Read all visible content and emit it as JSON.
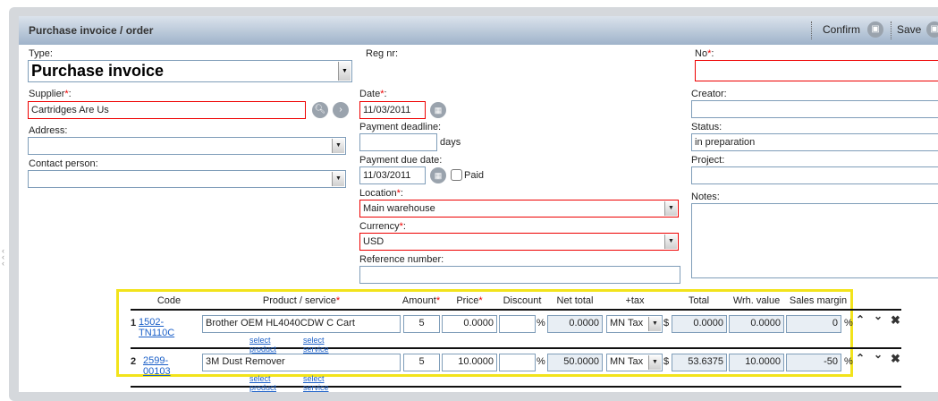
{
  "window": {
    "title": "Purchase invoice / order"
  },
  "toolbar": {
    "confirm_label": "Confirm",
    "save_label": "Save"
  },
  "form": {
    "type": {
      "label": "Type:",
      "value": "Purchase invoice"
    },
    "supplier": {
      "label": "Supplier",
      "value": "Cartridges Are Us"
    },
    "address": {
      "label": "Address:",
      "value": ""
    },
    "contact": {
      "label": "Contact person:",
      "value": ""
    },
    "reg_nr": {
      "label": "Reg nr:"
    },
    "date": {
      "label": "Date",
      "value": "11/03/2011"
    },
    "payment_deadline": {
      "label": "Payment deadline:",
      "value": "",
      "unit": "days"
    },
    "payment_due": {
      "label": "Payment due date:",
      "value": "11/03/2011",
      "paid_label": "Paid",
      "paid": false
    },
    "location": {
      "label": "Location",
      "value": "Main warehouse"
    },
    "currency": {
      "label": "Currency",
      "value": "USD"
    },
    "reference": {
      "label": "Reference number:",
      "value": ""
    },
    "no": {
      "label": "No",
      "value": ""
    },
    "creator": {
      "label": "Creator:",
      "value": ""
    },
    "status": {
      "label": "Status:",
      "value": "in preparation"
    },
    "project": {
      "label": "Project:",
      "value": ""
    },
    "notes": {
      "label": "Notes:",
      "value": ""
    },
    "required_mark": "*",
    "colon": ":"
  },
  "table": {
    "headers": {
      "code": "Code",
      "product": "Product / service",
      "amount": "Amount",
      "price": "Price",
      "discount": "Discount",
      "net": "Net total",
      "tax": "+tax",
      "total": "Total",
      "wrh": "Wrh. value",
      "margin": "Sales margin"
    },
    "select_product": "select product",
    "select_service": "select service",
    "percent": "%",
    "dollar": "$",
    "rows": [
      {
        "n": "1",
        "code": "1502-TN110C",
        "product": "Brother OEM HL4040CDW C Cart",
        "amount": "5",
        "price": "0.0000",
        "discount": "",
        "net": "0.0000",
        "tax": "MN Tax",
        "total": "0.0000",
        "wrh": "0.0000",
        "margin": "0"
      },
      {
        "n": "2",
        "code": "2599-00103",
        "product": "3M Dust Remover",
        "amount": "5",
        "price": "10.0000",
        "discount": "",
        "net": "50.0000",
        "tax": "MN Tax",
        "total": "53.6375",
        "wrh": "10.0000",
        "margin": "-50"
      }
    ]
  },
  "colors": {
    "required": "#e00000",
    "highlight": "#f2e31b",
    "link": "#1a5fc8"
  }
}
